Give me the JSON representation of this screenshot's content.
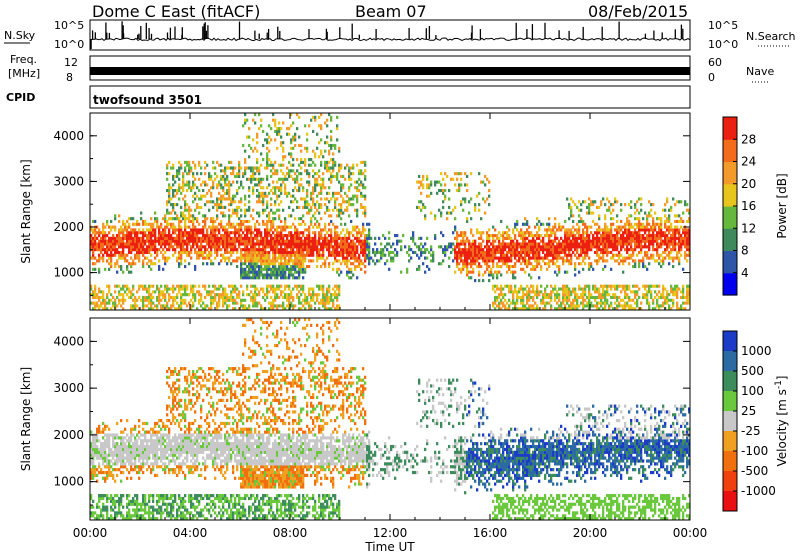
{
  "header": {
    "title": "Dome C East (fitACF)",
    "beam": "Beam 07",
    "date": "08/Feb/2015"
  },
  "panels": {
    "nsky": {
      "label": "N.Sky",
      "top_tick": "10^5",
      "bottom_tick": "10^0",
      "right_label": "N.Search",
      "right_top_tick": "10^5",
      "right_bottom_tick": "10^0"
    },
    "freq": {
      "label_line1": "Freq.",
      "label_line2": "[MHz]",
      "top_tick": "12",
      "bottom_tick": "8",
      "right_label": "Nave",
      "right_top_tick": "60",
      "right_bottom_tick": "0"
    },
    "cpid": {
      "label": "CPID",
      "value": "twofsound 3501"
    }
  },
  "chart_data": [
    {
      "type": "heatmap",
      "title": "",
      "xlabel": "",
      "ylabel": "Slant Range [km]",
      "ylim": [
        180,
        4500
      ],
      "x_ticks": [
        "00:00",
        "04:00",
        "08:00",
        "12:00",
        "16:00",
        "20:00",
        "00:00"
      ],
      "y_ticks": [
        "1000",
        "2000",
        "3000",
        "4000"
      ],
      "colorbar": {
        "label": "Power [dB]",
        "tick_labels": [
          "4",
          "8",
          "12",
          "16",
          "20",
          "24",
          "28"
        ],
        "colors": [
          "#0000ee",
          "#2e55a8",
          "#3e8a5c",
          "#66b83c",
          "#e8c51c",
          "#f39a2a",
          "#f26c1c",
          "#ec2010"
        ]
      }
    },
    {
      "type": "heatmap",
      "title": "",
      "xlabel": "Time UT",
      "ylabel": "Slant Range [km]",
      "ylim": [
        180,
        4500
      ],
      "x_ticks": [
        "00:00",
        "04:00",
        "08:00",
        "12:00",
        "16:00",
        "20:00",
        "00:00"
      ],
      "y_ticks": [
        "1000",
        "2000",
        "3000",
        "4000"
      ],
      "colorbar": {
        "label": "Velocity [m s",
        "label_superscript": "-1",
        "label_suffix": "]",
        "tick_labels": [
          "1000",
          "500",
          "100",
          "25",
          "-25",
          "-100",
          "-500",
          "-1000"
        ],
        "colors": [
          "#1c3cc8",
          "#2c6aa4",
          "#3c8c5c",
          "#6ac83c",
          "#c8c8c8",
          "#f0a020",
          "#f07010",
          "#f04010",
          "#e81010"
        ]
      }
    }
  ]
}
